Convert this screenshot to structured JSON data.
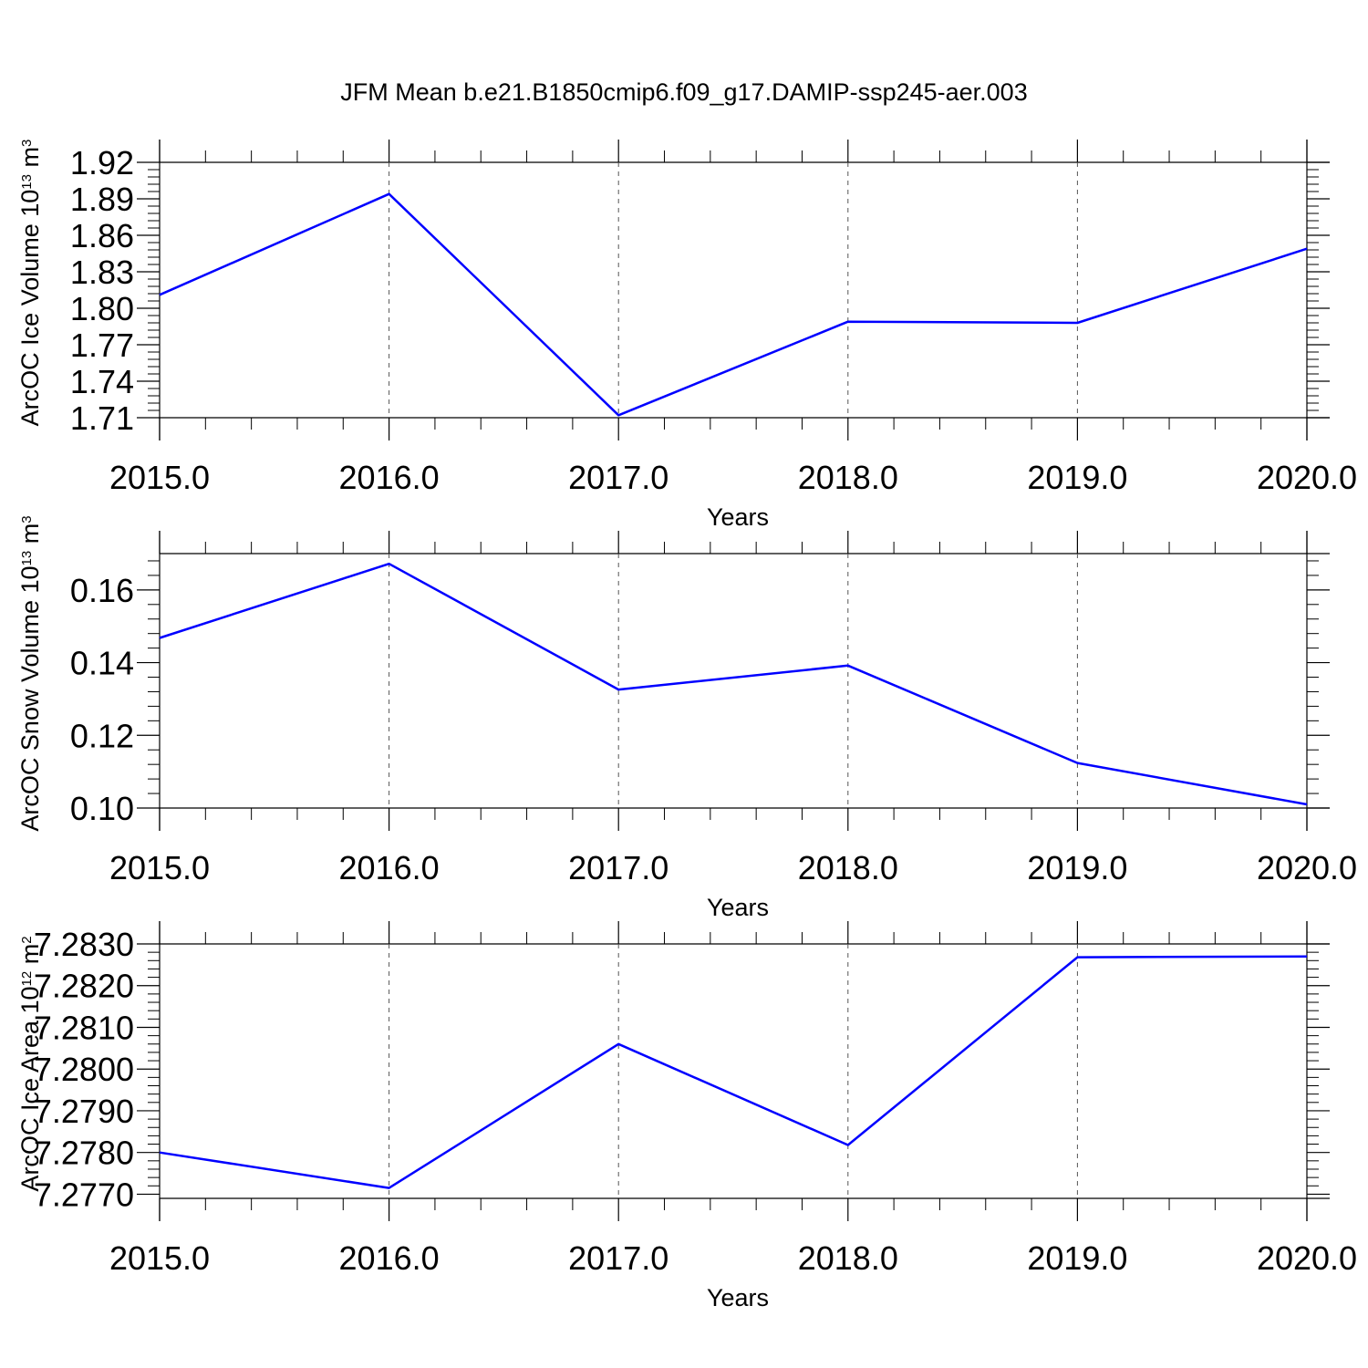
{
  "title": "JFM Mean b.e21.B1850cmip6.f09_g17.DAMIP-ssp245-aer.003",
  "colors": {
    "line": "#0000ff",
    "axis": "#000000",
    "grid": "#555555"
  },
  "chart_data": [
    {
      "type": "line",
      "ylabel": {
        "base": "ArcOC Ice Volume 10",
        "sup": "13",
        "unit_base": " m",
        "unit_sup": "3"
      },
      "xlabel": "Years",
      "x_ticks": [
        "2015.0",
        "2016.0",
        "2017.0",
        "2018.0",
        "2019.0",
        "2020.0"
      ],
      "y_ticks": [
        "1.92",
        "1.89",
        "1.86",
        "1.83",
        "1.80",
        "1.77",
        "1.74",
        "1.71"
      ],
      "xlim": [
        2015,
        2020
      ],
      "ylim": [
        1.71,
        1.92
      ],
      "grid": "vertical dashed at major x ticks",
      "series": [
        {
          "x": [
            2015,
            2016,
            2017,
            2018,
            2019,
            2020
          ],
          "values": [
            1.811,
            1.894,
            1.712,
            1.789,
            1.788,
            1.849
          ]
        }
      ]
    },
    {
      "type": "line",
      "ylabel": {
        "base": "ArcOC Snow Volume 10",
        "sup": "13",
        "unit_base": " m",
        "unit_sup": "3"
      },
      "xlabel": "Years",
      "x_ticks": [
        "2015.0",
        "2016.0",
        "2017.0",
        "2018.0",
        "2019.0",
        "2020.0"
      ],
      "y_ticks": [
        "0.16",
        "0.14",
        "0.12",
        "0.10"
      ],
      "xlim": [
        2015,
        2020
      ],
      "ylim": [
        0.1,
        0.17
      ],
      "grid": "vertical dashed at major x ticks",
      "series": [
        {
          "x": [
            2015,
            2016,
            2017,
            2018,
            2019,
            2020
          ],
          "values": [
            0.1468,
            0.1672,
            0.1326,
            0.1392,
            0.1124,
            0.101
          ]
        }
      ]
    },
    {
      "type": "line",
      "ylabel": {
        "base": "ArcOC Ice Area 10",
        "sup": "12",
        "unit_base": " m",
        "unit_sup": "2"
      },
      "xlabel": "Years",
      "x_ticks": [
        "2015.0",
        "2016.0",
        "2017.0",
        "2018.0",
        "2019.0",
        "2020.0"
      ],
      "y_ticks": [
        "7.2830",
        "7.2820",
        "7.2810",
        "7.2800",
        "7.2790",
        "7.2780",
        "7.2770"
      ],
      "xlim": [
        2015,
        2020
      ],
      "ylim": [
        7.2769,
        7.283
      ],
      "grid": "vertical dashed at major x ticks",
      "series": [
        {
          "x": [
            2015,
            2016,
            2017,
            2018,
            2019,
            2020
          ],
          "values": [
            7.278,
            7.27715,
            7.2806,
            7.27818,
            7.28268,
            7.2827
          ]
        }
      ]
    }
  ]
}
